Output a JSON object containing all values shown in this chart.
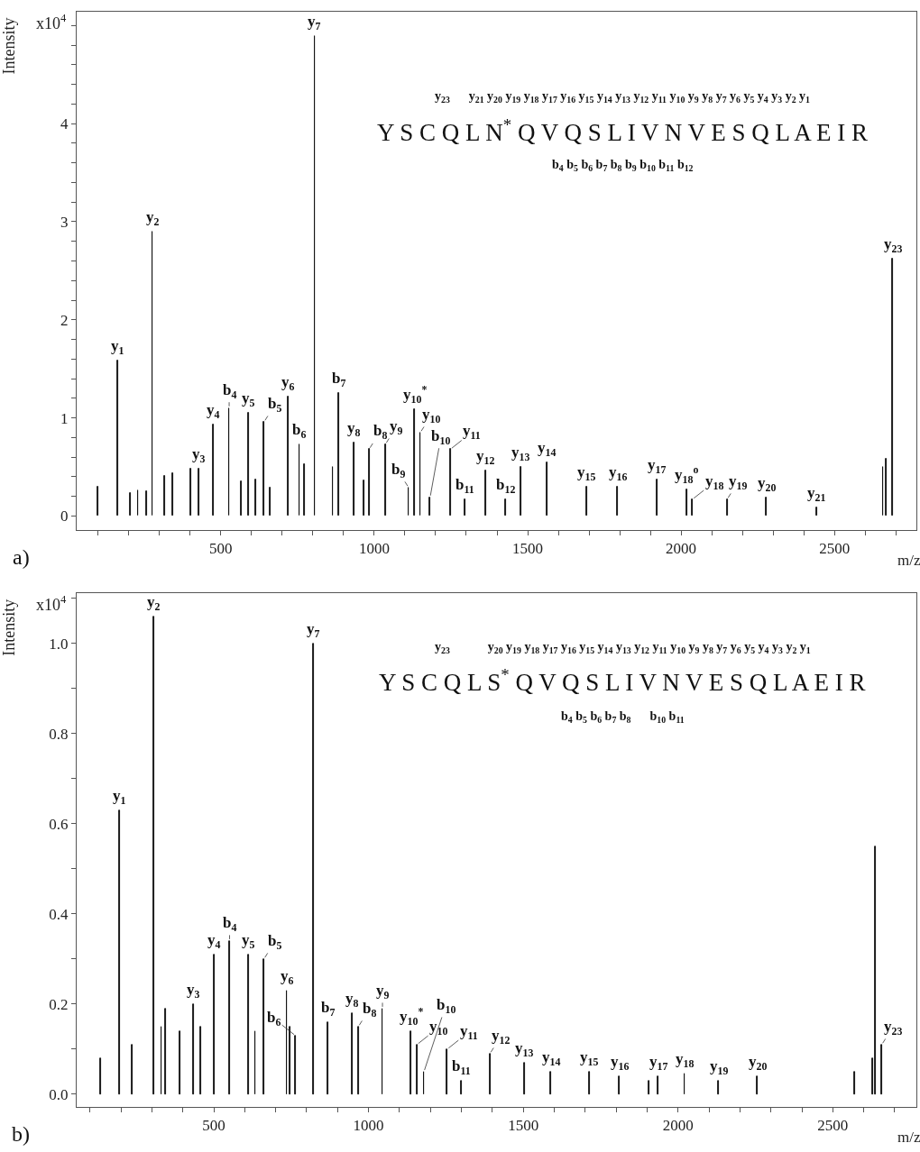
{
  "chart_data": [
    {
      "type": "bar",
      "ylabel": "Intensity",
      "xlabel": "m/z",
      "color": "#000000",
      "x": [
        99,
        164,
        205,
        230,
        259,
        277,
        316,
        344,
        403,
        428,
        476,
        527,
        566,
        590,
        613,
        641,
        660,
        719,
        756,
        772,
        806,
        865,
        884,
        934,
        966,
        983,
        1036,
        1112,
        1131,
        1150,
        1182,
        1248,
        1295,
        1363,
        1428,
        1477,
        1563,
        1692,
        1793,
        1921,
        2018,
        2037,
        2150,
        2278,
        2441,
        2658,
        2669,
        2690
      ],
      "values": [
        0.3,
        1.58,
        0.23,
        0.26,
        0.25,
        2.9,
        0.41,
        0.44,
        0.48,
        0.48,
        0.93,
        1.1,
        0.35,
        1.05,
        0.37,
        0.96,
        0.29,
        1.22,
        0.73,
        0.53,
        4.89,
        0.5,
        1.25,
        0.75,
        0.36,
        0.68,
        0.73,
        0.29,
        1.09,
        0.85,
        0.19,
        0.68,
        0.17,
        0.46,
        0.17,
        0.5,
        0.55,
        0.3,
        0.3,
        0.37,
        0.27,
        0.17,
        0.17,
        0.19,
        0.09,
        0.5,
        0.58,
        2.62
      ],
      "xlim": [
        30,
        2767
      ],
      "ylim": [
        -0.14,
        5.14
      ],
      "xticks": [
        {
          "value": 100,
          "label": null
        },
        {
          "value": 200,
          "label": null
        },
        {
          "value": 300,
          "label": null
        },
        {
          "value": 400,
          "label": null
        },
        500,
        {
          "value": 600,
          "label": null
        },
        {
          "value": 700,
          "label": null
        },
        {
          "value": 800,
          "label": null
        },
        {
          "value": 900,
          "label": null
        },
        1000,
        {
          "value": 1100,
          "label": null
        },
        {
          "value": 1200,
          "label": null
        },
        {
          "value": 1300,
          "label": null
        },
        {
          "value": 1400,
          "label": null
        },
        1500,
        {
          "value": 1600,
          "label": null
        },
        {
          "value": 1700,
          "label": null
        },
        {
          "value": 1800,
          "label": null
        },
        {
          "value": 1900,
          "label": null
        },
        2000,
        {
          "value": 2100,
          "label": null
        },
        {
          "value": 2200,
          "label": null
        },
        {
          "value": 2300,
          "label": null
        },
        {
          "value": 2400,
          "label": null
        },
        2500,
        {
          "value": 2600,
          "label": null
        },
        {
          "value": 2700,
          "label": null
        }
      ],
      "yticks": [
        0,
        {
          "value": 0.2,
          "label": null
        },
        {
          "value": 0.4,
          "label": null
        },
        {
          "value": 0.6,
          "label": null
        },
        {
          "value": 0.8,
          "label": null
        },
        1,
        {
          "value": 1.2,
          "label": null
        },
        {
          "value": 1.4,
          "label": null
        },
        {
          "value": 1.6,
          "label": null
        },
        {
          "value": 1.8,
          "label": null
        },
        2,
        {
          "value": 2.2,
          "label": null
        },
        {
          "value": 2.4,
          "label": null
        },
        {
          "value": 2.6,
          "label": null
        },
        {
          "value": 2.8,
          "label": null
        },
        3,
        {
          "value": 3.2,
          "label": null
        },
        {
          "value": 3.4,
          "label": null
        },
        {
          "value": 3.6,
          "label": null
        },
        {
          "value": 3.8,
          "label": null
        },
        4,
        {
          "value": 4.2,
          "label": null
        },
        {
          "value": 4.4,
          "label": null
        },
        {
          "value": 4.6,
          "label": null
        },
        {
          "value": 4.8,
          "label": null
        },
        {
          "value": 5.0,
          "label": null
        }
      ],
      "grid": false,
      "legend": false,
      "annotations": [
        "x10$^{4}$",
        "a)",
        "y$_{23}$      y$_{21}$ y$_{20}$ y$_{19}$ y$_{18}$ y$_{17}$ y$_{16}$ y$_{15}$ y$_{14}$ y$_{13}$ y$_{12}$ y$_{11}$ y$_{10}$ y$_{9}$ y$_{8}$ y$_{7}$ y$_{6}$ y$_{5}$ y$_{4}$ y$_{3}$ y$_{2}$ y$_{1}$",
        "Y S C Q L N$^{*}$ Q V Q S L I V N V E S Q L A E I R",
        "b$_{4}$ b$_{5}$ b$_{6}$ b$_{7}$ b$_{8}$ b$_{9}$ b$_{10}$ b$_{11}$ b$_{12}$",
        {
          "text": "y$_{1}$",
          "x": 164,
          "y": 1.58
        },
        {
          "text": "y$_{2}$",
          "x": 277,
          "y": 2.9
        },
        {
          "text": "y$_{3}$",
          "x": 428,
          "y": 0.48
        },
        {
          "text": "y$_{4}$",
          "x": 476,
          "y": 0.93
        },
        {
          "text": "b$_{4}$",
          "x": 527,
          "y": 1.1
        },
        {
          "text": "y$_{5}$",
          "x": 590,
          "y": 1.05
        },
        {
          "text": "b$_{5}$",
          "x": 641,
          "y": 0.96
        },
        {
          "text": "y$_{6}$",
          "x": 719,
          "y": 1.22
        },
        {
          "text": "b$_{6}$",
          "x": 756,
          "y": 0.73
        },
        {
          "text": "y$_{7}$",
          "x": 806,
          "y": 4.89
        },
        {
          "text": "b$_{7}$",
          "x": 884,
          "y": 1.25
        },
        {
          "text": "y$_{8}$",
          "x": 934,
          "y": 0.75
        },
        {
          "text": "b$_{8}$",
          "x": 983,
          "y": 0.68
        },
        {
          "text": "y$_{9}$",
          "x": 1036,
          "y": 0.73
        },
        {
          "text": "b$_{9}$",
          "x": 1112,
          "y": 0.29
        },
        {
          "text": "y$_{10}$$^{*}$",
          "x": 1131,
          "y": 1.09
        },
        {
          "text": "y$_{10}$",
          "x": 1150,
          "y": 0.85
        },
        {
          "text": "b$_{10}$",
          "x": 1182,
          "y": 0.19
        },
        {
          "text": "y$_{11}$",
          "x": 1248,
          "y": 0.68
        },
        {
          "text": "b$_{11}$",
          "x": 1295,
          "y": 0.17
        },
        {
          "text": "y$_{12}$",
          "x": 1363,
          "y": 0.46
        },
        {
          "text": "b$_{12}$",
          "x": 1428,
          "y": 0.17
        },
        {
          "text": "y$_{13}$",
          "x": 1477,
          "y": 0.5
        },
        {
          "text": "y$_{14}$",
          "x": 1563,
          "y": 0.55
        },
        {
          "text": "y$_{15}$",
          "x": 1692,
          "y": 0.3
        },
        {
          "text": "y$_{16}$",
          "x": 1793,
          "y": 0.3
        },
        {
          "text": "y$_{17}$",
          "x": 1921,
          "y": 0.37
        },
        {
          "text": "y$_{18}$$^{o}$",
          "x": 2018,
          "y": 0.27
        },
        {
          "text": "y$_{18}$",
          "x": 2037,
          "y": 0.17
        },
        {
          "text": "y$_{19}$",
          "x": 2150,
          "y": 0.17
        },
        {
          "text": "y$_{20}$",
          "x": 2278,
          "y": 0.19
        },
        {
          "text": "y$_{21}$",
          "x": 2441,
          "y": 0.09
        },
        {
          "text": "y$_{23}$",
          "x": 2690,
          "y": 2.62
        }
      ]
    },
    {
      "type": "bar",
      "ylabel": "Intensity",
      "xlabel": "m/z",
      "color": "#000000",
      "x": [
        133,
        195,
        235,
        306,
        331,
        345,
        391,
        434,
        457,
        501,
        551,
        611,
        634,
        662,
        736,
        747,
        764,
        822,
        869,
        947,
        967,
        1045,
        1137,
        1156,
        1179,
        1254,
        1300,
        1392,
        1503,
        1589,
        1713,
        1810,
        1905,
        1936,
        2021,
        2131,
        2256,
        2570,
        2629,
        2637,
        2658
      ],
      "values": [
        0.08,
        0.63,
        0.11,
        1.06,
        0.15,
        0.19,
        0.14,
        0.2,
        0.15,
        0.31,
        0.34,
        0.31,
        0.14,
        0.3,
        0.23,
        0.15,
        0.13,
        1.0,
        0.16,
        0.18,
        0.15,
        0.19,
        0.14,
        0.11,
        0.05,
        0.1,
        0.03,
        0.09,
        0.07,
        0.05,
        0.05,
        0.04,
        0.03,
        0.04,
        0.045,
        0.03,
        0.04,
        0.05,
        0.08,
        0.55,
        0.11
      ],
      "xlim": [
        57,
        2770
      ],
      "ylim": [
        -0.028,
        1.111
      ],
      "xticks": [
        {
          "value": 100,
          "label": null
        },
        {
          "value": 200,
          "label": null
        },
        {
          "value": 300,
          "label": null
        },
        {
          "value": 400,
          "label": null
        },
        500,
        {
          "value": 600,
          "label": null
        },
        {
          "value": 700,
          "label": null
        },
        {
          "value": 800,
          "label": null
        },
        {
          "value": 900,
          "label": null
        },
        1000,
        {
          "value": 1100,
          "label": null
        },
        {
          "value": 1200,
          "label": null
        },
        {
          "value": 1300,
          "label": null
        },
        {
          "value": 1400,
          "label": null
        },
        1500,
        {
          "value": 1600,
          "label": null
        },
        {
          "value": 1700,
          "label": null
        },
        {
          "value": 1800,
          "label": null
        },
        {
          "value": 1900,
          "label": null
        },
        2000,
        {
          "value": 2100,
          "label": null
        },
        {
          "value": 2200,
          "label": null
        },
        {
          "value": 2300,
          "label": null
        },
        {
          "value": 2400,
          "label": null
        },
        2500,
        {
          "value": 2600,
          "label": null
        },
        {
          "value": 2700,
          "label": null
        }
      ],
      "yticks": [
        {
          "value": 0,
          "label": "0.0"
        },
        {
          "value": 0.1,
          "label": null
        },
        {
          "value": 0.2,
          "label": "0.2"
        },
        {
          "value": 0.3,
          "label": null
        },
        {
          "value": 0.4,
          "label": "0.4"
        },
        {
          "value": 0.5,
          "label": null
        },
        {
          "value": 0.6,
          "label": "0.6"
        },
        {
          "value": 0.7,
          "label": null
        },
        {
          "value": 0.8,
          "label": "0.8"
        },
        {
          "value": 0.9,
          "label": null
        },
        {
          "value": 1.0,
          "label": "1.0"
        },
        {
          "value": 1.1,
          "label": null
        }
      ],
      "grid": false,
      "legend": false,
      "annotations": [
        "x10$^{4}$",
        "b)",
        "y$_{23}$            y$_{20}$ y$_{19}$ y$_{18}$ y$_{17}$ y$_{16}$ y$_{15}$ y$_{14}$ y$_{13}$ y$_{12}$ y$_{11}$ y$_{10}$ y$_{9}$ y$_{8}$ y$_{7}$ y$_{6}$ y$_{5}$ y$_{4}$ y$_{3}$ y$_{2}$ y$_{1}$",
        "Y S C Q L S$^{*}$ Q V Q S L I V N V E S Q L A E I R",
        "b$_{4}$ b$_{5}$ b$_{6}$ b$_{7}$ b$_{8}$      b$_{10}$ b$_{11}$",
        {
          "text": "y$_{1}$",
          "x": 195,
          "y": 0.63
        },
        {
          "text": "y$_{2}$",
          "x": 306,
          "y": 1.06
        },
        {
          "text": "y$_{3}$",
          "x": 434,
          "y": 0.2
        },
        {
          "text": "y$_{4}$",
          "x": 501,
          "y": 0.31
        },
        {
          "text": "b$_{4}$",
          "x": 551,
          "y": 0.34
        },
        {
          "text": "y$_{5}$",
          "x": 611,
          "y": 0.31
        },
        {
          "text": "b$_{5}$",
          "x": 662,
          "y": 0.3
        },
        {
          "text": "y$_{6}$",
          "x": 736,
          "y": 0.23
        },
        {
          "text": "b$_{6}$",
          "x": 764,
          "y": 0.13
        },
        {
          "text": "y$_{7}$",
          "x": 822,
          "y": 1.0
        },
        {
          "text": "b$_{7}$",
          "x": 869,
          "y": 0.16
        },
        {
          "text": "y$_{8}$",
          "x": 947,
          "y": 0.18
        },
        {
          "text": "b$_{8}$",
          "x": 967,
          "y": 0.15
        },
        {
          "text": "y$_{9}$",
          "x": 1045,
          "y": 0.19
        },
        {
          "text": "y$_{10}$$^{*}$",
          "x": 1137,
          "y": 0.14
        },
        {
          "text": "y$_{10}$",
          "x": 1156,
          "y": 0.11
        },
        {
          "text": "b$_{10}$",
          "x": 1179,
          "y": 0.05
        },
        {
          "text": "y$_{11}$",
          "x": 1254,
          "y": 0.1
        },
        {
          "text": "b$_{11}$",
          "x": 1300,
          "y": 0.03
        },
        {
          "text": "y$_{12}$",
          "x": 1392,
          "y": 0.09
        },
        {
          "text": "y$_{13}$",
          "x": 1503,
          "y": 0.07
        },
        {
          "text": "y$_{14}$",
          "x": 1589,
          "y": 0.05
        },
        {
          "text": "y$_{15}$",
          "x": 1713,
          "y": 0.05
        },
        {
          "text": "y$_{16}$",
          "x": 1810,
          "y": 0.04
        },
        {
          "text": "y$_{17}$",
          "x": 1936,
          "y": 0.04
        },
        {
          "text": "y$_{18}$",
          "x": 2021,
          "y": 0.045
        },
        {
          "text": "y$_{19}$",
          "x": 2131,
          "y": 0.03
        },
        {
          "text": "y$_{20}$",
          "x": 2256,
          "y": 0.04
        },
        {
          "text": "y$_{23}$",
          "x": 2658,
          "y": 0.11
        }
      ]
    }
  ]
}
